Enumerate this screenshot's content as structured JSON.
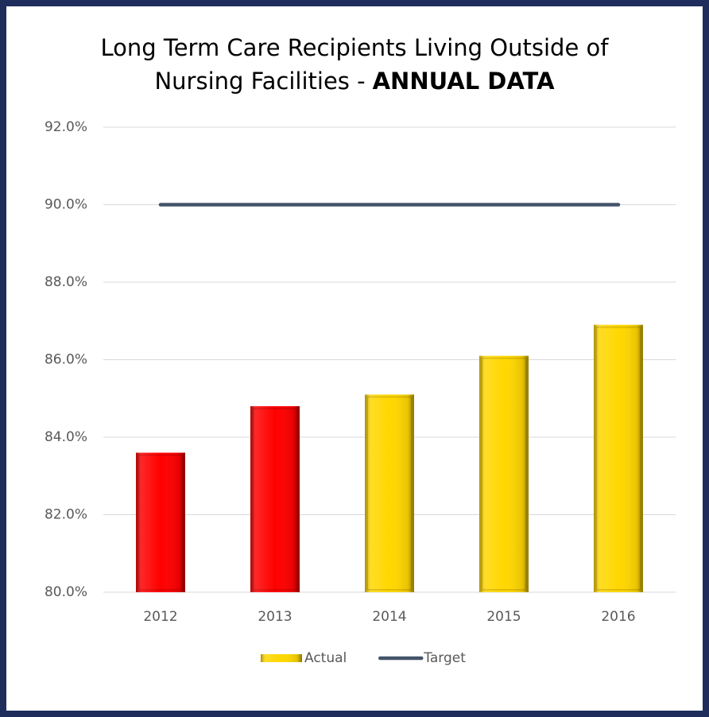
{
  "chart_data": {
    "type": "bar_line",
    "title_lines": [
      "Long Term Care Recipients Living Outside of",
      "Nursing Facilities -"
    ],
    "title_emphasis": "ANNUAL DATA",
    "categories": [
      "2012",
      "2013",
      "2014",
      "2015",
      "2016"
    ],
    "series": [
      {
        "name": "Actual",
        "type": "bar",
        "color": "#ffd700",
        "colors": [
          "#ff0000",
          "#ff0000",
          "#ffd700",
          "#ffd700",
          "#ffd700"
        ],
        "values": [
          83.6,
          84.8,
          85.1,
          86.1,
          86.9
        ]
      },
      {
        "name": "Target",
        "type": "line",
        "color": "#44546a",
        "values": [
          90,
          90,
          90,
          90,
          90
        ]
      }
    ],
    "ylim": [
      80,
      92
    ],
    "yticks": [
      {
        "value": 80,
        "label": "80.0%"
      },
      {
        "value": 82,
        "label": "82.0%"
      },
      {
        "value": 84,
        "label": "84.0%"
      },
      {
        "value": 86,
        "label": "86.0%"
      },
      {
        "value": 88,
        "label": "88.0%"
      },
      {
        "value": 90,
        "label": "90.0%"
      },
      {
        "value": 92,
        "label": "92.0%"
      }
    ],
    "grid": true,
    "legend": "bottom"
  }
}
